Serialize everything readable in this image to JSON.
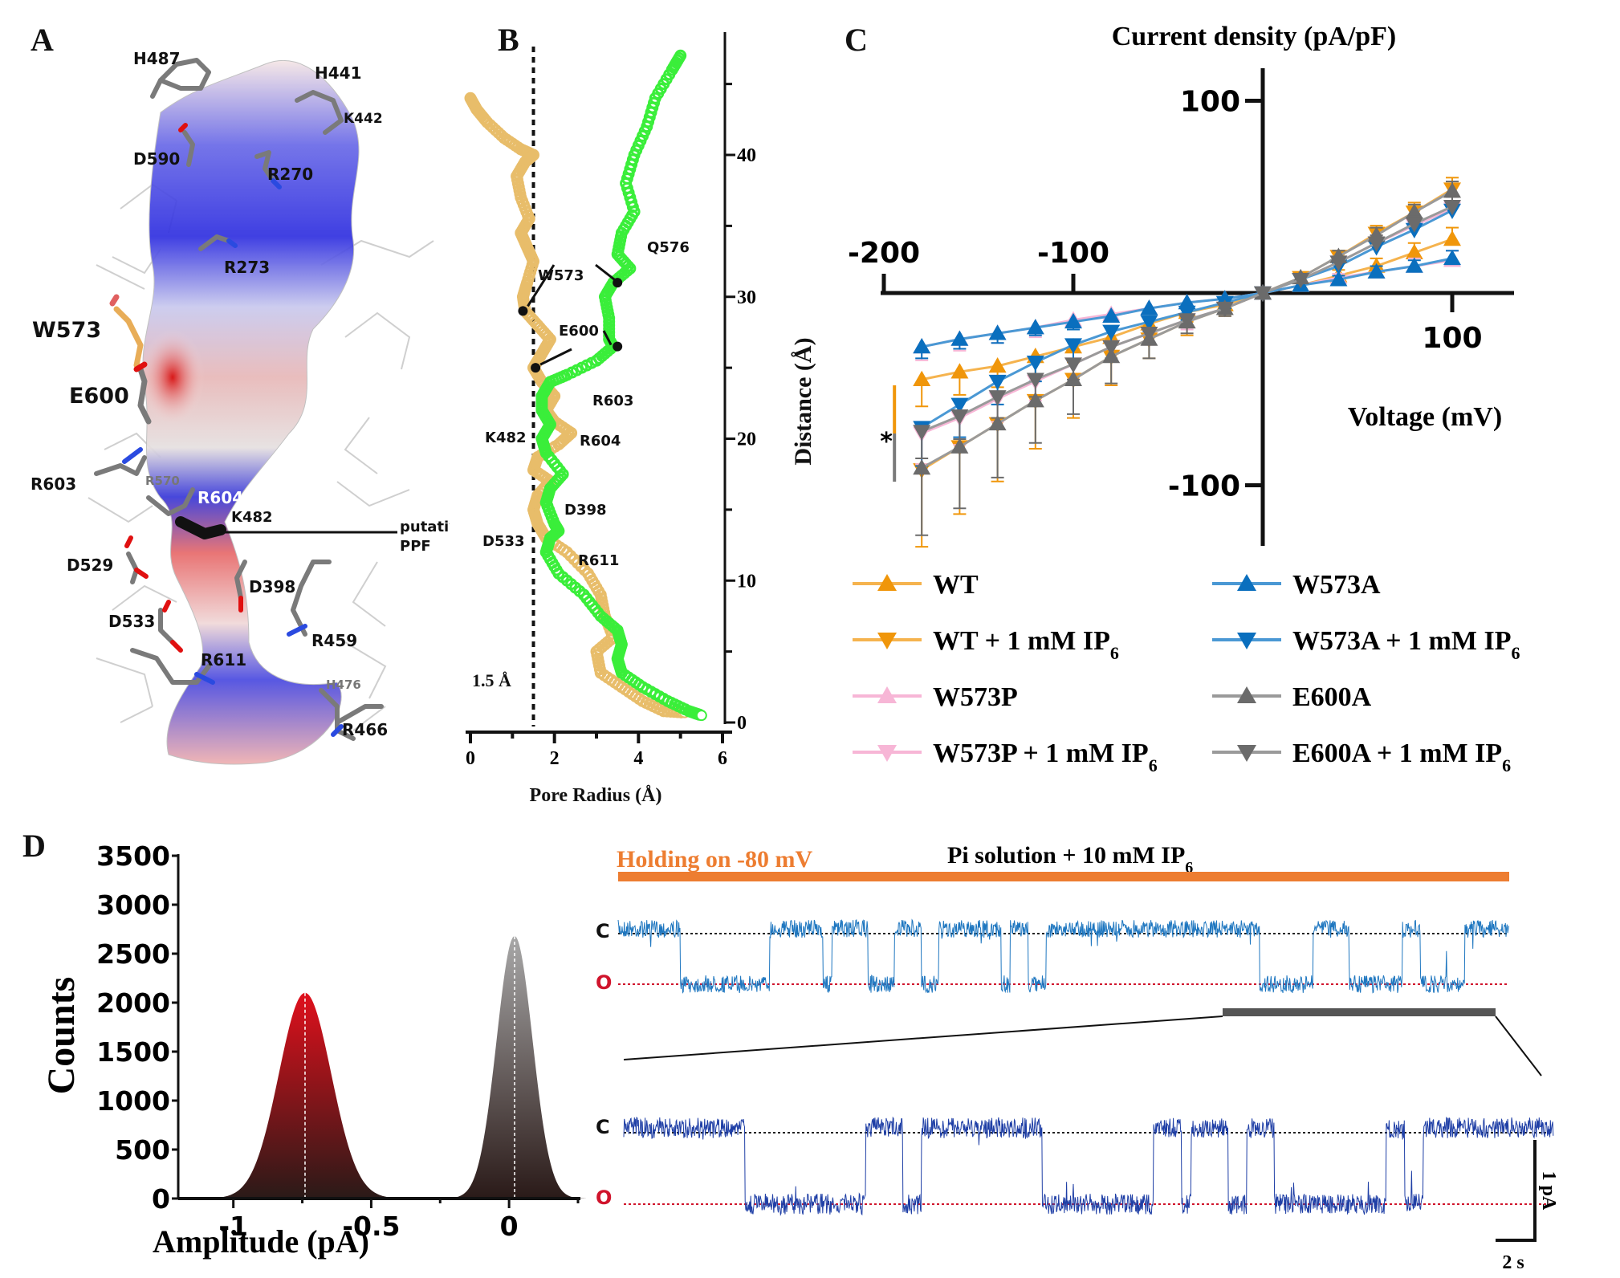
{
  "panels": {
    "A": {
      "letter": "A",
      "residue_labels": [
        {
          "text": "H487",
          "tone": "dark"
        },
        {
          "text": "H441",
          "tone": "dark"
        },
        {
          "text": "K442",
          "tone": "dark"
        },
        {
          "text": "D590",
          "tone": "dark"
        },
        {
          "text": "R270",
          "tone": "dark"
        },
        {
          "text": "R273",
          "tone": "dark"
        },
        {
          "text": "W573",
          "tone": "dark-large"
        },
        {
          "text": "E600",
          "tone": "dark-large"
        },
        {
          "text": "R603",
          "tone": "dark"
        },
        {
          "text": "R570",
          "tone": "grey"
        },
        {
          "text": "R604",
          "tone": "white"
        },
        {
          "text": "K482",
          "tone": "dark"
        },
        {
          "text": "D529",
          "tone": "dark"
        },
        {
          "text": "D398",
          "tone": "dark"
        },
        {
          "text": "D533",
          "tone": "dark"
        },
        {
          "text": "R459",
          "tone": "dark"
        },
        {
          "text": "R611",
          "tone": "dark"
        },
        {
          "text": "H476",
          "tone": "grey"
        },
        {
          "text": "R466",
          "tone": "dark"
        }
      ],
      "annotation": [
        "putative",
        "PPF"
      ],
      "surface_colors": {
        "positive": "#2a2ae0",
        "negative": "#e03030",
        "neutral": "#f4f4f4"
      }
    },
    "B": {
      "letter": "B",
      "chart_ref": 0
    },
    "C": {
      "letter": "C",
      "chart_ref": 1
    },
    "D": {
      "letter": "D",
      "chart_ref": 2,
      "trace": {
        "holding_label": "Holding on -80 mV",
        "solution_label": "Pi solution + 10 mM IP",
        "solution_subscript": "6",
        "closed_label": "C",
        "open_label": "O",
        "scale_current": "1 pA",
        "scale_time": "2 s",
        "colors": {
          "holding_bar": "#ed7d31",
          "trace_top": "#1f77c0",
          "trace_bottom": "#1f3fa6",
          "open_line": "#d0142c",
          "closed_line": "#222222",
          "zoom_bar": "#555555"
        }
      }
    }
  },
  "chart_data": [
    {
      "type": "scatter",
      "title": "",
      "xlabel": "Pore Radius (Å)",
      "ylabel": "Distance (Å)",
      "xlim": [
        0,
        6
      ],
      "ylim": [
        0,
        47
      ],
      "xticks": [
        0,
        2,
        4,
        6
      ],
      "yticks": [
        0,
        10,
        20,
        30,
        40
      ],
      "threshold": {
        "x": 1.5,
        "label": "1.5 Å"
      },
      "series": [
        {
          "name": "profile-1",
          "color": "#e8bd6a",
          "points": [
            [
              0.0,
              44.0
            ],
            [
              0.15,
              43.2
            ],
            [
              0.4,
              42.3
            ],
            [
              0.8,
              41.2
            ],
            [
              1.2,
              40.4
            ],
            [
              1.5,
              40.0
            ],
            [
              1.3,
              39.5
            ],
            [
              1.1,
              38.5
            ],
            [
              1.2,
              37.0
            ],
            [
              1.4,
              35.5
            ],
            [
              1.2,
              34.5
            ],
            [
              1.35,
              33.5
            ],
            [
              1.5,
              32.5
            ],
            [
              1.35,
              31.0
            ],
            [
              1.25,
              30.0
            ],
            [
              1.3,
              29.0
            ],
            [
              1.6,
              28.0
            ],
            [
              1.9,
              27.0
            ],
            [
              1.7,
              26.0
            ],
            [
              1.5,
              25.0
            ],
            [
              1.7,
              24.0
            ],
            [
              2.0,
              23.0
            ],
            [
              1.8,
              22.0
            ],
            [
              2.0,
              21.2
            ],
            [
              2.4,
              20.4
            ],
            [
              2.1,
              19.6
            ],
            [
              1.6,
              18.7
            ],
            [
              1.5,
              17.8
            ],
            [
              1.9,
              17.0
            ],
            [
              1.6,
              16.0
            ],
            [
              1.5,
              15.0
            ],
            [
              1.6,
              14.0
            ],
            [
              1.8,
              13.0
            ],
            [
              2.3,
              12.0
            ],
            [
              2.8,
              10.5
            ],
            [
              3.1,
              9.0
            ],
            [
              3.2,
              7.5
            ],
            [
              3.4,
              6.0
            ],
            [
              3.0,
              5.0
            ],
            [
              3.1,
              3.5
            ],
            [
              3.6,
              2.5
            ],
            [
              4.1,
              1.5
            ],
            [
              4.6,
              0.8
            ],
            [
              5.1,
              0.7
            ]
          ]
        },
        {
          "name": "profile-2",
          "color": "#3aee3a",
          "points": [
            [
              5.0,
              47.0
            ],
            [
              4.8,
              46.0
            ],
            [
              4.4,
              44.0
            ],
            [
              4.2,
              42.0
            ],
            [
              3.9,
              40.0
            ],
            [
              3.7,
              38.0
            ],
            [
              3.9,
              36.0
            ],
            [
              3.6,
              34.5
            ],
            [
              3.5,
              33.0
            ],
            [
              3.8,
              32.0
            ],
            [
              3.4,
              31.0
            ],
            [
              3.2,
              30.0
            ],
            [
              3.3,
              28.5
            ],
            [
              3.3,
              27.0
            ],
            [
              3.4,
              26.5
            ],
            [
              3.0,
              25.5
            ],
            [
              2.3,
              24.5
            ],
            [
              1.9,
              24.0
            ],
            [
              1.7,
              23.0
            ],
            [
              1.7,
              22.0
            ],
            [
              1.9,
              21.0
            ],
            [
              1.7,
              20.0
            ],
            [
              1.8,
              19.0
            ],
            [
              2.2,
              17.5
            ],
            [
              1.9,
              16.5
            ],
            [
              1.8,
              15.5
            ],
            [
              2.0,
              14.0
            ],
            [
              2.1,
              13.5
            ],
            [
              1.9,
              13.0
            ],
            [
              1.8,
              12.0
            ],
            [
              2.1,
              10.5
            ],
            [
              2.7,
              9.0
            ],
            [
              3.1,
              7.5
            ],
            [
              3.5,
              6.5
            ],
            [
              3.6,
              5.5
            ],
            [
              3.5,
              4.5
            ],
            [
              3.6,
              3.5
            ],
            [
              4.1,
              2.5
            ],
            [
              4.7,
              1.5
            ],
            [
              5.2,
              0.8
            ],
            [
              5.5,
              0.5
            ]
          ]
        }
      ],
      "markers": [
        {
          "label": "W573",
          "points": [
            [
              1.25,
              29.0
            ],
            [
              3.5,
              31.0
            ]
          ]
        },
        {
          "label": "E600",
          "points": [
            [
              1.55,
              25.0
            ],
            [
              3.5,
              26.5
            ]
          ]
        }
      ],
      "annotations": [
        "Q576",
        "W573",
        "E600",
        "R603",
        "K482",
        "R604",
        "D398",
        "D533",
        "R611"
      ]
    },
    {
      "type": "line",
      "title": "Current density (pA/pF)",
      "xlabel": "Voltage (mV)",
      "ylabel": "Current density (pA/pF)",
      "xlim": [
        -200,
        130
      ],
      "ylim": [
        -130,
        115
      ],
      "xticks": [
        -200,
        -100,
        100
      ],
      "yticks": [
        100,
        -100
      ],
      "legend": "bottom",
      "x": [
        -180,
        -160,
        -140,
        -120,
        -100,
        -80,
        -60,
        -40,
        -20,
        0,
        20,
        40,
        60,
        80,
        100
      ],
      "series": [
        {
          "name": "WT",
          "marker": "up",
          "color": "#f0960a",
          "line": "#f5b34e",
          "values": [
            -45,
            -41,
            -38,
            -33,
            -28,
            -23,
            -16,
            -10,
            -6,
            0,
            4,
            9,
            14,
            21,
            28
          ],
          "err": [
            14,
            12,
            11,
            10,
            8,
            7,
            6,
            5,
            4,
            2,
            2,
            3,
            4,
            5,
            6
          ]
        },
        {
          "name": "WT + 1 mM IP6",
          "marker": "down",
          "color": "#f0960a",
          "line": "#f5b34e",
          "values": [
            -92,
            -80,
            -68,
            -56,
            -45,
            -33,
            -24,
            -15,
            -8,
            0,
            8,
            19,
            31,
            42,
            54
          ],
          "err": [
            40,
            35,
            30,
            25,
            20,
            15,
            10,
            7,
            4,
            2,
            2,
            3,
            4,
            5,
            6
          ]
        },
        {
          "name": "W573P",
          "marker": "up",
          "color": "#f7b6d6",
          "line": "#f7b6d6",
          "values": [
            -28,
            -24,
            -21,
            -18,
            -14,
            -11,
            -8,
            -5,
            -3,
            0,
            4,
            8,
            11,
            14,
            17
          ],
          "err": [
            7,
            6,
            5,
            5,
            4,
            3,
            3,
            2,
            2,
            1,
            2,
            2,
            3,
            4,
            5
          ]
        },
        {
          "name": "W573P + 1 mM IP6",
          "marker": "down",
          "color": "#f7b6d6",
          "line": "#f7b6d6",
          "values": [
            -73,
            -65,
            -55,
            -46,
            -37,
            -28,
            -21,
            -14,
            -8,
            0,
            7,
            16,
            26,
            35,
            44
          ],
          "err": [
            16,
            14,
            12,
            10,
            8,
            7,
            6,
            5,
            3,
            2,
            2,
            3,
            4,
            5,
            6
          ]
        },
        {
          "name": "W573A",
          "marker": "up",
          "color": "#0a6fbe",
          "line": "#4a98d4",
          "values": [
            -28,
            -24,
            -21,
            -18,
            -15,
            -12,
            -8,
            -5,
            -3,
            0,
            4,
            7,
            11,
            14,
            18
          ],
          "err": [
            6,
            5,
            5,
            4,
            4,
            3,
            3,
            2,
            2,
            1,
            2,
            2,
            3,
            3,
            4
          ]
        },
        {
          "name": "W573A + 1 mM IP6",
          "marker": "down",
          "color": "#0a6fbe",
          "line": "#4a98d4",
          "values": [
            -70,
            -58,
            -46,
            -36,
            -27,
            -20,
            -15,
            -10,
            -5,
            0,
            7,
            14,
            24,
            33,
            43
          ],
          "err": [
            20,
            17,
            12,
            10,
            8,
            6,
            5,
            4,
            3,
            2,
            2,
            3,
            3,
            4,
            5
          ]
        },
        {
          "name": "E600A",
          "marker": "up",
          "color": "#6b6b6b",
          "line": "#9a9a9a",
          "values": [
            -91,
            -80,
            -68,
            -56,
            -45,
            -33,
            -24,
            -15,
            -8,
            0,
            8,
            19,
            30,
            42,
            53
          ],
          "err": [
            35,
            32,
            28,
            22,
            18,
            14,
            10,
            6,
            4,
            2,
            2,
            3,
            4,
            4,
            5
          ]
        },
        {
          "name": "E600A + 1 mM IP6",
          "marker": "down",
          "color": "#6b6b6b",
          "line": "#9a9a9a",
          "values": [
            -72,
            -64,
            -54,
            -45,
            -37,
            -28,
            -21,
            -14,
            -8,
            0,
            7,
            16,
            26,
            36,
            45
          ],
          "err": [
            14,
            12,
            11,
            9,
            8,
            6,
            5,
            4,
            3,
            2,
            2,
            3,
            4,
            4,
            5
          ]
        }
      ],
      "significance": {
        "label": "*",
        "at_x": -180
      }
    },
    {
      "type": "bar",
      "title": "",
      "xlabel": "Amplitude (pA)",
      "ylabel": "Counts",
      "xlim": [
        -1.2,
        0.25
      ],
      "ylim": [
        0,
        3500
      ],
      "xticks": [
        -1,
        -0.5,
        0
      ],
      "yticks": [
        0,
        500,
        1000,
        1500,
        2000,
        2500,
        3000,
        3500
      ],
      "series": [
        {
          "name": "open",
          "mean": -0.74,
          "sd": 0.095,
          "peak": 2100,
          "color_top": "#e0101c",
          "color_bottom": "#2a1a18"
        },
        {
          "name": "closed",
          "mean": 0.02,
          "sd": 0.065,
          "peak": 2680,
          "color_top": "#a8a8a8",
          "color_bottom": "#2a1a18"
        }
      ]
    }
  ]
}
